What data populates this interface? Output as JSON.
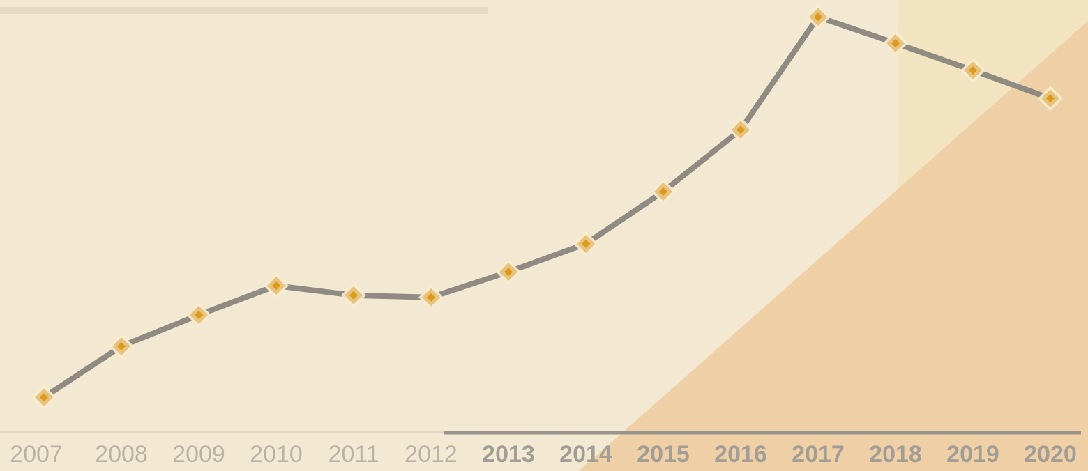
{
  "chart_data": {
    "type": "line",
    "categories": [
      "2007",
      "2008",
      "2009",
      "2010",
      "2011",
      "2012",
      "2013",
      "2014",
      "2015",
      "2016",
      "2017",
      "2018",
      "2019",
      "2020"
    ],
    "series": [
      {
        "color": "#8f8b82",
        "marker_color": "#d99a1e",
        "values": [
          8.3,
          20.5,
          28,
          35,
          32.7,
          32.2,
          38.3,
          45,
          57.5,
          72.3,
          99.3,
          93,
          86.5,
          79.8
        ]
      }
    ],
    "ylim": [
      0,
      100
    ]
  }
}
